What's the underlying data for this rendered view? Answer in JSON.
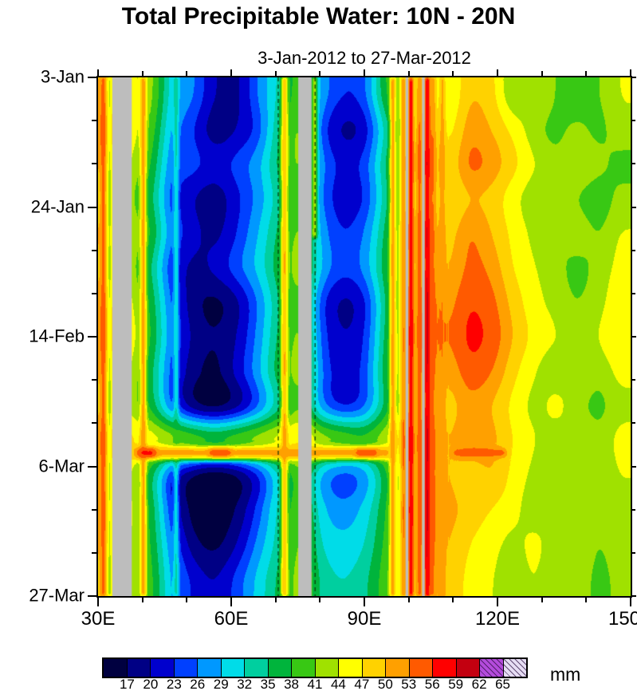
{
  "figure": {
    "title": "Total Precipitable Water: 10N - 20N",
    "subtitle": "3-Jan-2012 to 27-Mar-2012",
    "unit_label": "mm",
    "background": "#ffffff"
  },
  "chart_data": {
    "type": "heatmap",
    "description": "Time-longitude Hovmoller diagram of total precipitable water (mm) averaged 10N-20N, 3-Jan-2012 to 27-Mar-2012, 30E-150E. Gray vertical bands are missing/masked longitudes.",
    "x_axis": {
      "min": 30,
      "max": 150,
      "unit": "degrees east",
      "minor_step": 10,
      "major_ticks": [
        {
          "value": 30,
          "label": "30E"
        },
        {
          "value": 60,
          "label": "60E"
        },
        {
          "value": 90,
          "label": "90E"
        },
        {
          "value": 120,
          "label": "120E"
        },
        {
          "value": 150,
          "label": "150E"
        }
      ]
    },
    "y_axis": {
      "min_day": 0,
      "max_day": 84,
      "minor_step": 7,
      "major_ticks": [
        {
          "day": 0,
          "label": "3-Jan"
        },
        {
          "day": 21,
          "label": "24-Jan"
        },
        {
          "day": 42,
          "label": "14-Feb"
        },
        {
          "day": 63,
          "label": "6-Mar"
        },
        {
          "day": 84,
          "label": "27-Mar"
        }
      ]
    },
    "lon_columns": [
      30,
      35,
      40,
      45,
      50,
      55,
      60,
      65,
      70,
      75,
      80,
      85,
      90,
      95,
      100,
      105,
      110,
      115,
      120,
      125,
      130,
      135,
      140,
      145,
      150
    ],
    "day_rows": [
      0,
      6,
      12,
      18,
      24,
      30,
      36,
      42,
      48,
      54,
      60,
      66,
      72,
      78,
      84
    ],
    "values_mm": [
      [
        50,
        45,
        42,
        30,
        26,
        20,
        19,
        26,
        33,
        40,
        28,
        23,
        25,
        38,
        45,
        48,
        44,
        50,
        48,
        41,
        44,
        41,
        38,
        41,
        44
      ],
      [
        52,
        46,
        40,
        28,
        23,
        18,
        20,
        24,
        35,
        42,
        25,
        19,
        21,
        33,
        46,
        50,
        46,
        52,
        50,
        46,
        42,
        40,
        42,
        40,
        43
      ],
      [
        50,
        44,
        38,
        26,
        24,
        22,
        24,
        28,
        36,
        42,
        27,
        22,
        24,
        35,
        47,
        52,
        48,
        54,
        52,
        48,
        44,
        42,
        44,
        42,
        40
      ],
      [
        48,
        42,
        36,
        24,
        20,
        18,
        22,
        27,
        34,
        40,
        26,
        21,
        23,
        34,
        46,
        50,
        47,
        50,
        49,
        45,
        42,
        44,
        41,
        39,
        42
      ],
      [
        50,
        44,
        38,
        26,
        21,
        19,
        23,
        29,
        36,
        42,
        28,
        23,
        26,
        36,
        48,
        52,
        49,
        53,
        50,
        46,
        43,
        41,
        43,
        41,
        44
      ],
      [
        49,
        43,
        35,
        23,
        19,
        21,
        25,
        30,
        37,
        43,
        29,
        24,
        27,
        37,
        47,
        51,
        50,
        54,
        52,
        47,
        44,
        42,
        40,
        42,
        45
      ],
      [
        51,
        45,
        37,
        25,
        18,
        16,
        19,
        26,
        35,
        41,
        24,
        19,
        22,
        35,
        48,
        53,
        52,
        56,
        54,
        49,
        45,
        43,
        41,
        43,
        46
      ],
      [
        52,
        46,
        38,
        26,
        19,
        17,
        20,
        27,
        36,
        42,
        25,
        20,
        23,
        36,
        49,
        54,
        53,
        57,
        55,
        50,
        46,
        44,
        42,
        44,
        47
      ],
      [
        50,
        44,
        36,
        24,
        18,
        16,
        21,
        28,
        37,
        43,
        26,
        21,
        24,
        37,
        48,
        52,
        51,
        55,
        53,
        48,
        44,
        42,
        44,
        42,
        45
      ],
      [
        49,
        43,
        37,
        25,
        17,
        15,
        18,
        25,
        34,
        41,
        27,
        22,
        25,
        36,
        47,
        51,
        49,
        52,
        50,
        46,
        43,
        45,
        42,
        40,
        43
      ],
      [
        52,
        48,
        46,
        44,
        42,
        40,
        42,
        44,
        46,
        48,
        44,
        42,
        40,
        44,
        50,
        53,
        50,
        53,
        51,
        47,
        44,
        42,
        44,
        42,
        45
      ],
      [
        50,
        44,
        36,
        22,
        16,
        14,
        16,
        22,
        32,
        40,
        28,
        24,
        27,
        37,
        48,
        52,
        50,
        48,
        50,
        46,
        43,
        41,
        43,
        41,
        44
      ],
      [
        51,
        45,
        37,
        23,
        15,
        14,
        17,
        24,
        33,
        41,
        30,
        27,
        30,
        38,
        49,
        53,
        51,
        49,
        47,
        45,
        42,
        44,
        41,
        43,
        42
      ],
      [
        50,
        44,
        38,
        26,
        18,
        16,
        20,
        27,
        34,
        42,
        32,
        30,
        32,
        39,
        48,
        52,
        50,
        47,
        45,
        43,
        45,
        42,
        44,
        41,
        43
      ],
      [
        49,
        43,
        39,
        28,
        22,
        20,
        24,
        30,
        36,
        43,
        34,
        32,
        34,
        40,
        47,
        51,
        49,
        46,
        44,
        42,
        44,
        41,
        43,
        40,
        42
      ]
    ],
    "vertical_strips": [
      {
        "lon": 31.2,
        "width": 0.8,
        "value": 56
      },
      {
        "lon": 32.6,
        "width": 0.7,
        "value": 40
      },
      {
        "lon": 40.2,
        "width": 1.0,
        "value": 54
      },
      {
        "lon": 47.6,
        "width": 0.6,
        "value": 38
      },
      {
        "lon": 72.0,
        "width": 1.2,
        "value": 52
      },
      {
        "lon": 78.8,
        "width": 0.8,
        "value": 49,
        "day_from": 0,
        "day_to": 26
      },
      {
        "lon": 96.4,
        "width": 0.9,
        "value": 55
      },
      {
        "lon": 98.8,
        "width": 0.7,
        "value": 57
      },
      {
        "lon": 100.5,
        "width": 0.8,
        "value": 62
      },
      {
        "lon": 102.4,
        "width": 0.7,
        "value": 56
      },
      {
        "lon": 104.2,
        "width": 0.8,
        "value": 63
      },
      {
        "lon": 105.4,
        "width": 0.7,
        "value": 55
      },
      {
        "lon": 107.6,
        "width": 0.8,
        "value": 53
      }
    ],
    "horizontal_streaks": [
      {
        "day": 60.8,
        "height_days": 2.0,
        "lon_from": 37.5,
        "lon_to": 96,
        "value": 51
      },
      {
        "day": 60.8,
        "height_days": 1.4,
        "lon_from": 39,
        "lon_to": 43,
        "value": 57
      },
      {
        "day": 60.8,
        "height_days": 1.2,
        "lon_from": 55,
        "lon_to": 60,
        "value": 55
      },
      {
        "day": 60.8,
        "height_days": 1.2,
        "lon_from": 88,
        "lon_to": 93,
        "value": 55
      },
      {
        "day": 60.8,
        "height_days": 1.2,
        "lon_from": 110,
        "lon_to": 122,
        "value": 55
      }
    ],
    "mask_bands": [
      {
        "from": 33.2,
        "to": 37.6
      },
      {
        "from": 75.1,
        "to": 78.1
      },
      {
        "from": 99.3,
        "to": 99.9
      },
      {
        "from": 103.0,
        "to": 103.6
      }
    ],
    "dashed_lines": [
      {
        "lon": 70.6
      },
      {
        "lon": 78.9
      }
    ],
    "dashed_line_color": "#0a3300",
    "mask_color": "#bdbdbd",
    "value_range_for_encoding": [
      12,
      68
    ],
    "colorbar": {
      "boundaries": [
        17,
        20,
        23,
        26,
        29,
        32,
        35,
        38,
        41,
        44,
        47,
        50,
        53,
        56,
        59,
        62,
        65
      ],
      "colors": [
        "#000040",
        "#000085",
        "#0000cd",
        "#0040ff",
        "#0098ff",
        "#00dce8",
        "#00cf9f",
        "#00b43c",
        "#38c814",
        "#a0e100",
        "#ffff00",
        "#ffd200",
        "#ffa000",
        "#ff5a00",
        "#ff0000",
        "#c30010",
        "#b44bdc",
        "#e6ddf4"
      ],
      "hatched_from_index": 16,
      "unit": "mm"
    }
  }
}
